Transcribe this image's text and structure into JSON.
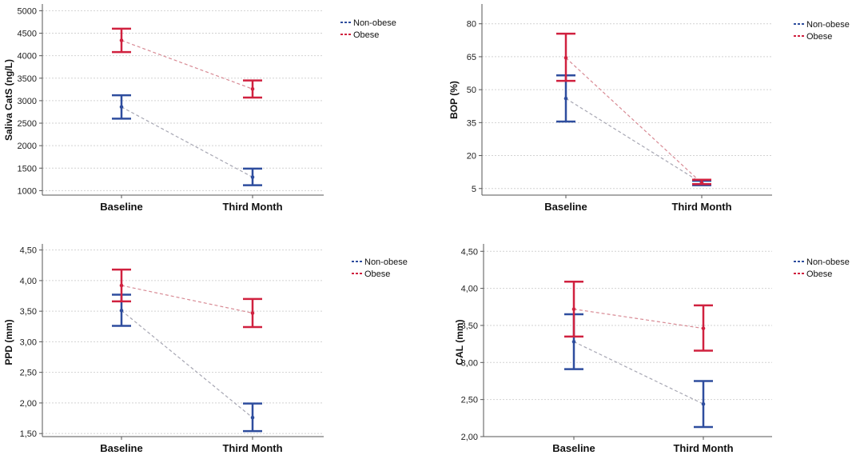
{
  "chart_data": [
    {
      "type": "line",
      "ylabel": "Saliva CatS (ng/L)",
      "categories": [
        "Baseline",
        "Third Month"
      ],
      "ylim": [
        900,
        5150
      ],
      "yticks": [
        1000,
        1500,
        2000,
        2500,
        3000,
        3500,
        4000,
        4500,
        5000
      ],
      "ytick_labels": [
        "1000",
        "1500",
        "2000",
        "2500",
        "3000",
        "3500",
        "4000",
        "4500",
        "5000"
      ],
      "grid": true,
      "legend_position": "top-right",
      "series": [
        {
          "name": "Non-obese",
          "color": "#2e4d9e",
          "values": [
            2860,
            1300
          ],
          "lower": [
            2600,
            1120
          ],
          "upper": [
            3120,
            1490
          ]
        },
        {
          "name": "Obese",
          "color": "#d0213f",
          "values": [
            4340,
            3260
          ],
          "lower": [
            4080,
            3070
          ],
          "upper": [
            4600,
            3450
          ]
        }
      ]
    },
    {
      "type": "line",
      "ylabel": "BOP (%)",
      "categories": [
        "Baseline",
        "Third Month"
      ],
      "ylim": [
        2,
        89
      ],
      "yticks": [
        5,
        20,
        35,
        50,
        65,
        80
      ],
      "ytick_labels": [
        "5",
        "20",
        "35",
        "50",
        "65",
        "80"
      ],
      "grid": true,
      "legend_position": "top-right",
      "series": [
        {
          "name": "Non-obese",
          "color": "#2e4d9e",
          "values": [
            46,
            7.5
          ],
          "lower": [
            35.5,
            6.5
          ],
          "upper": [
            56.5,
            8.5
          ]
        },
        {
          "name": "Obese",
          "color": "#d0213f",
          "values": [
            64.5,
            7.5
          ],
          "lower": [
            54,
            7
          ],
          "upper": [
            75.5,
            9
          ]
        }
      ]
    },
    {
      "type": "line",
      "ylabel": "PPD (mm)",
      "categories": [
        "Baseline",
        "Third Month"
      ],
      "ylim": [
        1.45,
        4.6
      ],
      "yticks": [
        1.5,
        2.0,
        2.5,
        3.0,
        3.5,
        4.0,
        4.5
      ],
      "ytick_labels": [
        "1,50",
        "2,00",
        "2,50",
        "3,00",
        "3,50",
        "4,00",
        "4,50"
      ],
      "grid": true,
      "legend_position": "top-right",
      "series": [
        {
          "name": "Non-obese",
          "color": "#2e4d9e",
          "values": [
            3.51,
            1.76
          ],
          "lower": [
            3.26,
            1.54
          ],
          "upper": [
            3.77,
            1.99
          ]
        },
        {
          "name": "Obese",
          "color": "#d0213f",
          "values": [
            3.92,
            3.47
          ],
          "lower": [
            3.66,
            3.24
          ],
          "upper": [
            4.18,
            3.7
          ]
        }
      ]
    },
    {
      "type": "line",
      "ylabel": "CAL (mm)",
      "categories": [
        "Baseline",
        "Third Month"
      ],
      "ylim": [
        2.0,
        4.6
      ],
      "yticks": [
        2.0,
        2.5,
        3.0,
        3.5,
        4.0,
        4.5
      ],
      "ytick_labels": [
        "2,00",
        "2,50",
        "3,00",
        "3,50",
        "4,00",
        "4,50"
      ],
      "grid": true,
      "legend_position": "top-right",
      "series": [
        {
          "name": "Non-obese",
          "color": "#2e4d9e",
          "values": [
            3.28,
            2.44
          ],
          "lower": [
            2.91,
            2.13
          ],
          "upper": [
            3.65,
            2.75
          ]
        },
        {
          "name": "Obese",
          "color": "#d0213f",
          "values": [
            3.72,
            3.46
          ],
          "lower": [
            3.35,
            3.16
          ],
          "upper": [
            4.09,
            3.77
          ]
        }
      ]
    }
  ]
}
